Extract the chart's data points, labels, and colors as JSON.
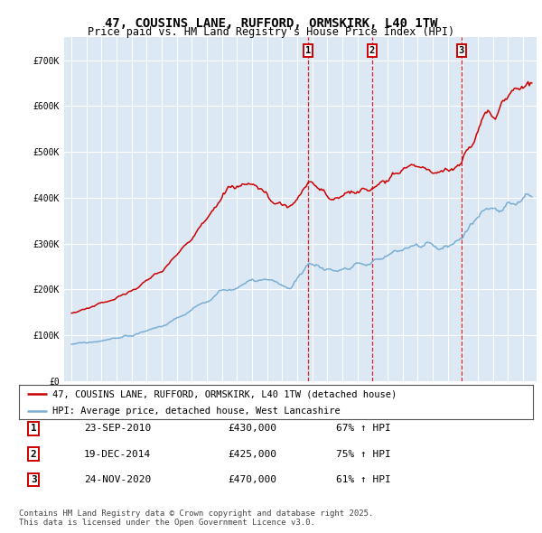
{
  "title": "47, COUSINS LANE, RUFFORD, ORMSKIRK, L40 1TW",
  "subtitle": "Price paid vs. HM Land Registry's House Price Index (HPI)",
  "ylim": [
    0,
    750000
  ],
  "yticks": [
    0,
    100000,
    200000,
    300000,
    400000,
    500000,
    600000,
    700000
  ],
  "ytick_labels": [
    "£0",
    "£100K",
    "£200K",
    "£300K",
    "£400K",
    "£500K",
    "£600K",
    "£700K"
  ],
  "red_color": "#cc0000",
  "blue_color": "#7aadd4",
  "bg_color": "#dce9f5",
  "grid_color": "#ffffff",
  "sale_dates": [
    2010.73,
    2014.97,
    2020.9
  ],
  "sale_labels": [
    "1",
    "2",
    "3"
  ],
  "legend_red": "47, COUSINS LANE, RUFFORD, ORMSKIRK, L40 1TW (detached house)",
  "legend_blue": "HPI: Average price, detached house, West Lancashire",
  "table_rows": [
    [
      "1",
      "23-SEP-2010",
      "£430,000",
      "67% ↑ HPI"
    ],
    [
      "2",
      "19-DEC-2014",
      "£425,000",
      "75% ↑ HPI"
    ],
    [
      "3",
      "24-NOV-2020",
      "£470,000",
      "61% ↑ HPI"
    ]
  ],
  "footer": "Contains HM Land Registry data © Crown copyright and database right 2025.\nThis data is licensed under the Open Government Licence v3.0.",
  "title_fontsize": 10,
  "subtitle_fontsize": 8.5,
  "tick_fontsize": 7,
  "legend_fontsize": 7.5,
  "table_fontsize": 8,
  "footer_fontsize": 6.5
}
